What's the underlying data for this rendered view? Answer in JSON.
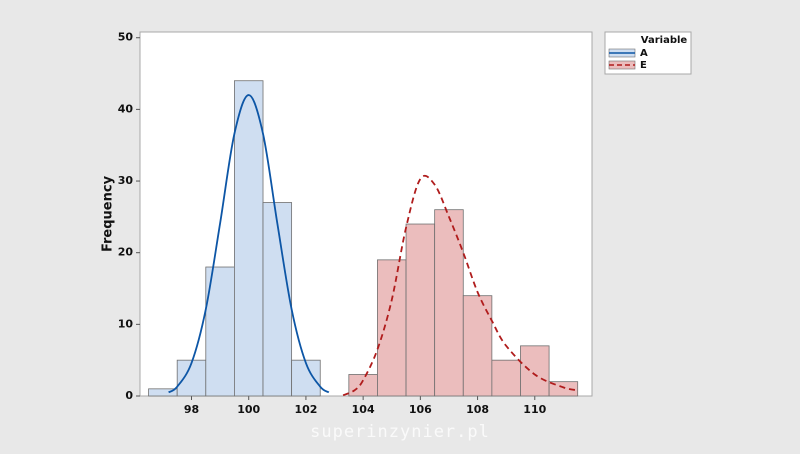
{
  "chart_data": {
    "type": "histogram",
    "y_label": "Frequency",
    "legend_title": "Variable",
    "legend": "outside-top-right",
    "watermark": "superinzynier.pl",
    "xlim": [
      96.2,
      112.0
    ],
    "ylim": [
      0,
      50.8
    ],
    "xticks": [
      98,
      100,
      102,
      104,
      106,
      108,
      110
    ],
    "yticks": [
      0,
      10,
      20,
      30,
      40,
      50
    ],
    "bar_edge_color": "#6f6f6f",
    "series": [
      {
        "name": "A",
        "color": "#cfdef1",
        "line_color": "#0d56a6",
        "line_style": "solid",
        "bins": [
          96.5,
          97.5,
          98.5,
          99.5,
          100.5,
          101.5,
          102.5
        ],
        "values": [
          1,
          5,
          18,
          44,
          27,
          5
        ],
        "fit": {
          "x": [
            97.2,
            97.5,
            98,
            98.5,
            99,
            99.5,
            100,
            100.5,
            101,
            101.5,
            102,
            102.5,
            102.8
          ],
          "values": [
            0.5,
            1.3,
            4.6,
            12.1,
            24.1,
            36.6,
            42,
            36.6,
            24.1,
            12.1,
            4.6,
            1.3,
            0.5
          ]
        }
      },
      {
        "name": "E",
        "color": "#ebbdbd",
        "line_color": "#b01c1c",
        "line_style": "dashed",
        "bins": [
          103.5,
          104.5,
          105.5,
          106.5,
          107.5,
          108.5,
          109.5,
          110.5,
          111.5
        ],
        "values": [
          3,
          19,
          24,
          26,
          14,
          5,
          7,
          2
        ],
        "fit": {
          "x": [
            103.3,
            103.7,
            104,
            104.5,
            105,
            105.5,
            106,
            106.5,
            107,
            107.5,
            108,
            108.5,
            109,
            110,
            111,
            111.5
          ],
          "values": [
            0.1,
            0.8,
            2.2,
            6.5,
            13.4,
            23.5,
            30.3,
            29.5,
            25,
            20,
            14.5,
            10.5,
            7,
            3,
            1.2,
            0.8
          ]
        }
      }
    ]
  }
}
